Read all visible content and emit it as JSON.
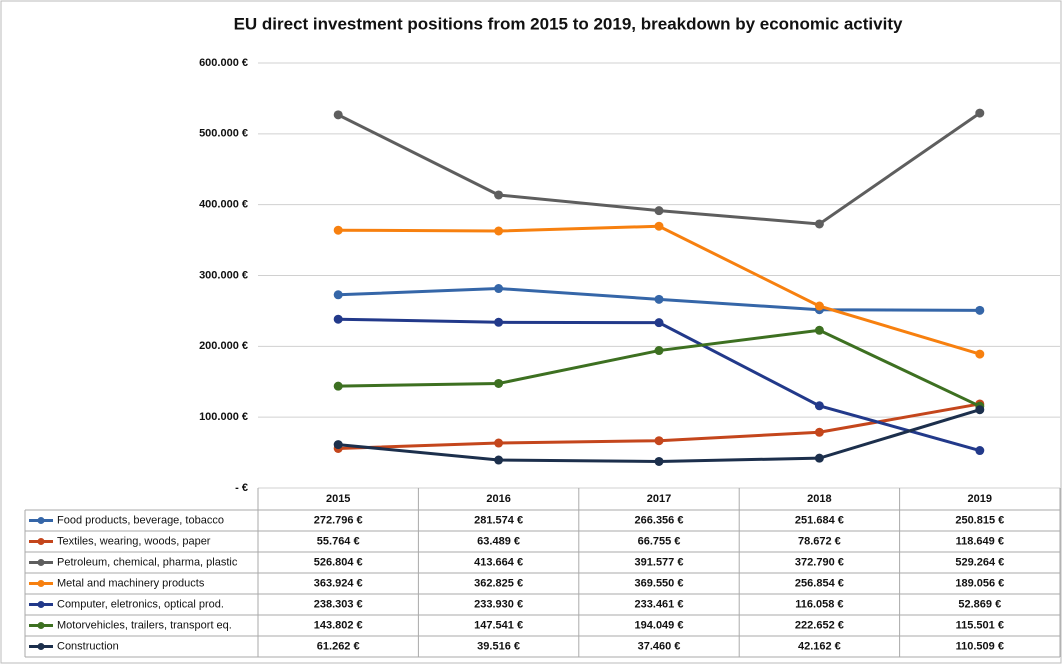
{
  "chart_data": {
    "type": "line",
    "title": "EU direct investment positions from 2015 to 2019, breakdown by economic activity",
    "categories": [
      "2015",
      "2016",
      "2017",
      "2018",
      "2019"
    ],
    "ylim": [
      0,
      600000
    ],
    "yticks": [
      {
        "value": 0,
        "label": "-  €"
      },
      {
        "value": 100000,
        "label": "100.000 €"
      },
      {
        "value": 200000,
        "label": "200.000 €"
      },
      {
        "value": 300000,
        "label": "300.000 €"
      },
      {
        "value": 400000,
        "label": "400.000 €"
      },
      {
        "value": 500000,
        "label": "500.000 €"
      },
      {
        "value": 600000,
        "label": "600.000 €"
      }
    ],
    "grid": true,
    "series": [
      {
        "name": "Food products, beverage, tobacco",
        "color": "#3566a8",
        "values": [
          272796,
          281574,
          266356,
          251684,
          250815
        ],
        "value_labels": [
          "272.796 €",
          "281.574 €",
          "266.356 €",
          "251.684 €",
          "250.815 €"
        ]
      },
      {
        "name": "Textiles, wearing, woods, paper",
        "color": "#c4461c",
        "values": [
          55764,
          63489,
          66755,
          78672,
          118649
        ],
        "value_labels": [
          "55.764 €",
          "63.489 €",
          "66.755 €",
          "78.672 €",
          "118.649 €"
        ]
      },
      {
        "name": "Petroleum, chemical, pharma, plastic",
        "color": "#5e5e5e",
        "values": [
          526804,
          413664,
          391577,
          372790,
          529264
        ],
        "value_labels": [
          "526.804 €",
          "413.664 €",
          "391.577 €",
          "372.790 €",
          "529.264 €"
        ]
      },
      {
        "name": "Metal and machinery products",
        "color": "#f7800f",
        "values": [
          363924,
          362825,
          369550,
          256854,
          189056
        ],
        "value_labels": [
          "363.924 €",
          "362.825 €",
          "369.550 €",
          "256.854 €",
          "189.056 €"
        ]
      },
      {
        "name": "Computer, eletronics, optical prod.",
        "color": "#22398a",
        "values": [
          238303,
          233930,
          233461,
          116058,
          52869
        ],
        "value_labels": [
          "238.303 €",
          "233.930 €",
          "233.461 €",
          "116.058 €",
          "52.869 €"
        ]
      },
      {
        "name": "Motorvehicles, trailers, transport eq.",
        "color": "#3d7021",
        "values": [
          143802,
          147541,
          194049,
          222652,
          115501
        ],
        "value_labels": [
          "143.802 €",
          "147.541 €",
          "194.049 €",
          "222.652 €",
          "115.501 €"
        ]
      },
      {
        "name": "Construction",
        "color": "#1c2f4c",
        "values": [
          61262,
          39516,
          37460,
          42162,
          110509
        ],
        "value_labels": [
          "61.262 €",
          "39.516 €",
          "37.460 €",
          "42.162 €",
          "110.509 €"
        ]
      }
    ]
  }
}
